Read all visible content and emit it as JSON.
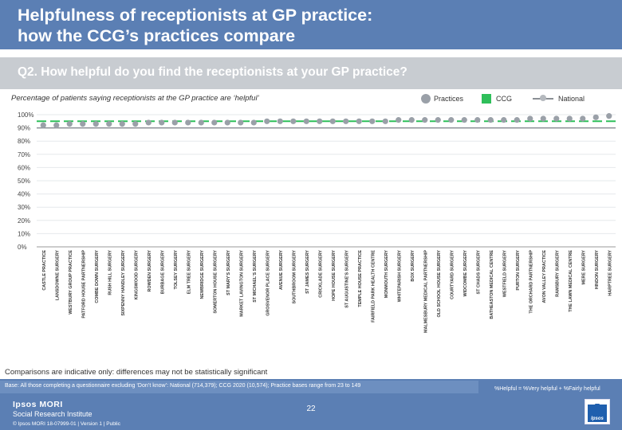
{
  "header": {
    "title_line1": "Helpfulness of receptionists at GP practice:",
    "title_line2": "how the CCG’s practices compare"
  },
  "question": "Q2. How helpful do you find the receptionists at your GP practice?",
  "subtitle": "Percentage of patients saying receptionists at the GP practice are ‘helpful’",
  "legend": {
    "practices": "Practices",
    "ccg": "CCG",
    "national": "National"
  },
  "colors": {
    "header_bg": "#5b7fb4",
    "practice_dot": "#9aa0a8",
    "ccg": "#2fbf5a",
    "national_line": "#8a8f95"
  },
  "chart_data": {
    "type": "scatter",
    "y_ticks": [
      "0%",
      "10%",
      "20%",
      "30%",
      "40%",
      "50%",
      "60%",
      "70%",
      "80%",
      "90%",
      "100%"
    ],
    "ylim": [
      0,
      100
    ],
    "categories": [
      "CASTLE PRACTICE",
      "LANSDOWNE SURGERY",
      "WESTBURY GROUP PRACTICE",
      "PATFORD HOUSE PARTNERSHIP",
      "COMBE DOWN SURGERY",
      "RUSH HILL SURGERY",
      "SIXPENNY HANDLEY SURGERY",
      "KINGSWOOD SURGERY",
      "ROWDEN SURGERY",
      "BURBAGE SURGERY",
      "TOLSEY SURGERY",
      "ELM TREE SURGERY",
      "NEWBRIDGE SURGERY",
      "SOMERTON HOUSE SURGERY",
      "ST MARY'S SURGERY",
      "MARKET LAVINGTON SURGERY",
      "ST MICHAEL'S SURGERY",
      "GROSVENOR PLACE SURGERY",
      "AVENUE SURGERY",
      "SOUTHBROOM SURGERY",
      "ST JAMES SURGERY",
      "CRICKLADE SURGERY",
      "HOPE HOUSE SURGERY",
      "ST AUGUSTINE'S SURGERY",
      "TEMPLE HOUSE PRACTICE",
      "FAIRFIELD PARK HEALTH CENTRE",
      "MONMOUTH SURGERY",
      "WHITEPARISH SURGERY",
      "BOX SURGERY",
      "MALMESBURY MEDICAL PARTNERSHIP",
      "OLD SCHOOL HOUSE SURGERY",
      "COURTYARD SURGERY",
      "WIDCOMBE SURGERY",
      "ST CHADS SURGERY",
      "BATHEASTON MEDICAL CENTRE",
      "WESTFIELD SURGERY",
      "PURTON SURGERY",
      "THE ORCHARD PARTNERSHIP",
      "AVON VALLEY PRACTICE",
      "RAMSBURY SURGERY",
      "THE LAWN MEDICAL CENTRE",
      "MERE SURGERY",
      "HINDON SURGERY",
      "HARPTREE SURGERY"
    ],
    "series": [
      {
        "name": "Practices",
        "values": [
          92,
          92,
          93,
          93,
          93,
          93,
          93,
          93,
          94,
          94,
          94,
          94,
          94,
          94,
          94,
          94,
          94,
          95,
          95,
          95,
          95,
          95,
          95,
          95,
          95,
          95,
          95,
          96,
          96,
          96,
          96,
          96,
          96,
          96,
          96,
          96,
          96,
          97,
          97,
          97,
          97,
          97,
          98,
          99
        ]
      },
      {
        "name": "CCG",
        "value": 95
      },
      {
        "name": "National",
        "value": 90
      }
    ],
    "title": "Percentage of patients saying receptionists at the GP practice are ‘helpful’"
  },
  "note": "Comparisons are indicative only: differences may not be statistically significant",
  "base": "Base: All those completing a questionnaire excluding ‘Don’t know’: National (714,379); CCG 2020 (10,574); Practice bases range from 23 to 149",
  "definition": "%Helpful = %Very helpful + %Fairly helpful",
  "footer": {
    "brand_line1": "Ipsos MORI",
    "brand_line2": "Social Research Institute",
    "copyright": "© Ipsos MORI       18-07999-01 | Version 1 | Public",
    "page": "22",
    "logo_text": "Ipsos"
  }
}
